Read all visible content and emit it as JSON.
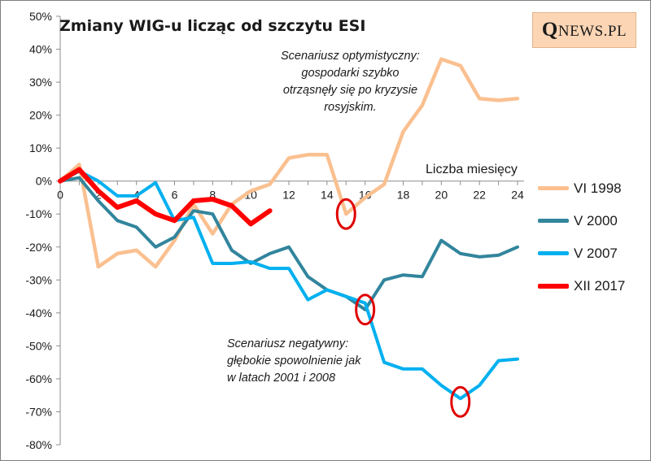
{
  "title": "Zmiany WIG-u licząc od szczytu ESI",
  "logo": {
    "big": "Q",
    "rest": "NEWS.PL"
  },
  "annotations": {
    "optimistic": [
      "Scenariusz optymistyczny:",
      "gospodarki szybko",
      "otrząsnęły się po kryzysie",
      "rosyjskim."
    ],
    "negative": [
      "Scenariusz negatywny:",
      "głębokie spowolnienie jak",
      "w latach 2001 i 2008"
    ]
  },
  "chart_data": {
    "type": "line",
    "title": "Zmiany WIG-u licząc od szczytu ESI",
    "xlabel": "Liczba miesięcy",
    "ylabel": "",
    "xlim": [
      0,
      24
    ],
    "ylim": [
      -80,
      50
    ],
    "x_ticks": [
      0,
      2,
      4,
      6,
      8,
      10,
      12,
      14,
      16,
      18,
      20,
      22,
      24
    ],
    "y_ticks": [
      -80,
      -70,
      -60,
      -50,
      -40,
      -30,
      -20,
      -10,
      0,
      10,
      20,
      30,
      40,
      50
    ],
    "y_tick_labels": [
      "-80%",
      "-70%",
      "-60%",
      "-50%",
      "-40%",
      "-30%",
      "-20%",
      "-10%",
      "0%",
      "10%",
      "20%",
      "30%",
      "40%",
      "50%"
    ],
    "grid": false,
    "legend_position": "right",
    "series": [
      {
        "name": "VI 1998",
        "color": "#fac090",
        "x": [
          0,
          1,
          2,
          3,
          4,
          5,
          6,
          7,
          8,
          9,
          10,
          11,
          12,
          13,
          14,
          15,
          16,
          17,
          18,
          19,
          20,
          21,
          22,
          23,
          24
        ],
        "values": [
          0,
          5,
          -26,
          -22,
          -21,
          -26,
          -18,
          -7,
          -16,
          -7,
          -3,
          -1,
          7,
          8,
          8,
          -10,
          -5,
          -1,
          15,
          23,
          37,
          35,
          25,
          24.5,
          25
        ]
      },
      {
        "name": "V 2000",
        "color": "#31859c",
        "x": [
          0,
          1,
          2,
          3,
          4,
          5,
          6,
          7,
          8,
          9,
          10,
          11,
          12,
          13,
          14,
          15,
          16,
          17,
          18,
          19,
          20,
          21,
          22,
          23,
          24
        ],
        "values": [
          0,
          1,
          -6,
          -12,
          -14,
          -20,
          -17,
          -9,
          -10,
          -21,
          -25,
          -22,
          -20,
          -29,
          -33,
          -35,
          -39,
          -30,
          -28.5,
          -29,
          -18,
          -22,
          -23,
          -22.5,
          -20
        ]
      },
      {
        "name": "V 2007",
        "color": "#00b0f0",
        "x": [
          0,
          1,
          2,
          3,
          4,
          5,
          6,
          7,
          8,
          9,
          10,
          11,
          12,
          13,
          14,
          15,
          16,
          17,
          18,
          19,
          20,
          21,
          22,
          23,
          24
        ],
        "values": [
          0,
          3,
          0,
          -4.5,
          -4.5,
          -0.5,
          -12,
          -11,
          -25,
          -25,
          -24.5,
          -26.5,
          -26.5,
          -36,
          -33,
          -35,
          -37,
          -55,
          -57,
          -57,
          -62,
          -66,
          -62,
          -54.5,
          -54
        ]
      },
      {
        "name": "XII 2017",
        "color": "#ff0000",
        "x": [
          0,
          1,
          2,
          3,
          4,
          5,
          6,
          7,
          8,
          9,
          10,
          11
        ],
        "values": [
          0,
          3.5,
          -3,
          -8,
          -6,
          -10,
          -12,
          -6,
          -5.5,
          -7.5,
          -13,
          -9
        ]
      }
    ],
    "highlights": [
      {
        "x": 15,
        "y": -10
      },
      {
        "x": 16,
        "y": -39
      },
      {
        "x": 21,
        "y": -67
      }
    ]
  }
}
